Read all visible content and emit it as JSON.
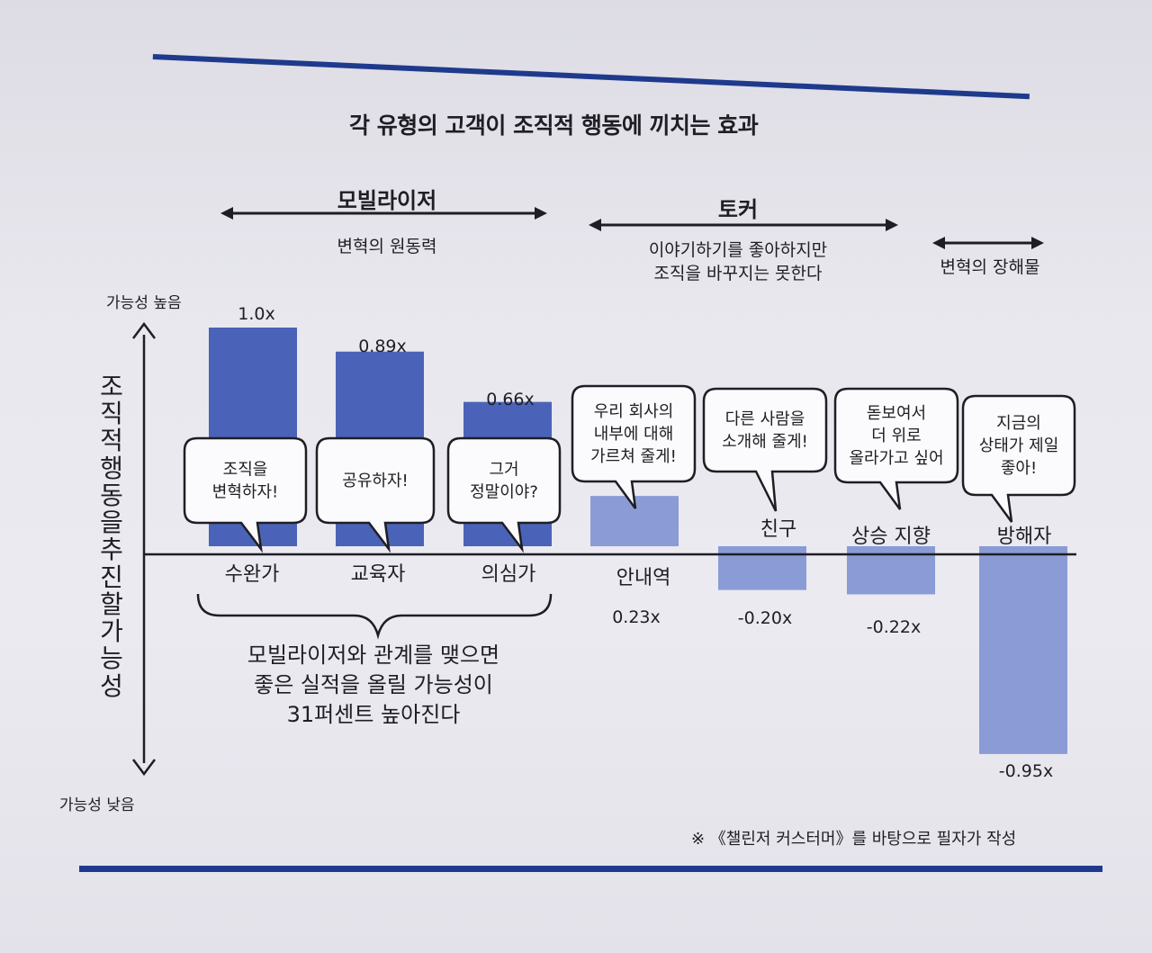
{
  "title": "각 유형의 고객이 조직적 행동에 끼치는 효과",
  "groups": [
    {
      "name": "모빌라이저",
      "subtitle": "변혁의 원동력"
    },
    {
      "name": "토커",
      "subtitle_lines": [
        "이야기하기를 좋아하지만",
        "조직을 바꾸지는 못한다"
      ]
    },
    {
      "name": "",
      "subtitle": "변혁의 장해물"
    }
  ],
  "axis": {
    "high": "가능성 높음",
    "low": "가능성 낮음",
    "label": "조직적 행동을 추진할 가능성"
  },
  "chart_data": {
    "type": "bar",
    "categories": [
      "수완가",
      "교육자",
      "의심가",
      "안내역",
      "친구",
      "상승 지향",
      "방해자"
    ],
    "values": [
      1.0,
      0.89,
      0.66,
      0.23,
      -0.2,
      -0.22,
      -0.95
    ],
    "value_labels": [
      "1.0x",
      "0.89x",
      "0.66x",
      "0.23x",
      "-0.20x",
      "-0.22x",
      "-0.95x"
    ],
    "ylim": [
      -0.95,
      1.0
    ],
    "colors": [
      "#4a63b8",
      "#4a63b8",
      "#4a63b8",
      "#8a9bd6",
      "#8a9bd6",
      "#8a9bd6",
      "#8a9bd6"
    ]
  },
  "bubbles": [
    [
      "조직을",
      "변혁하자!"
    ],
    [
      "공유하자!"
    ],
    [
      "그거",
      "정말이야?"
    ],
    [
      "우리 회사의",
      "내부에 대해",
      "가르쳐 줄게!"
    ],
    [
      "다른 사람을",
      "소개해 줄게!"
    ],
    [
      "돋보여서",
      "더 위로",
      "올라가고 싶어"
    ],
    [
      "지금의",
      "상태가 제일",
      "좋아!"
    ]
  ],
  "conclusion_lines": [
    "모빌라이저와 관계를 맺으면",
    "좋은 실적을 올릴 가능성이",
    "31퍼센트 높아진다"
  ],
  "footnote": "※ 《챌린저 커스터머》를 바탕으로 필자가 작성",
  "colors": {
    "strong_bar": "#4a63b8",
    "light_bar": "#8a9bd6",
    "rule": "#1f3a8c"
  }
}
